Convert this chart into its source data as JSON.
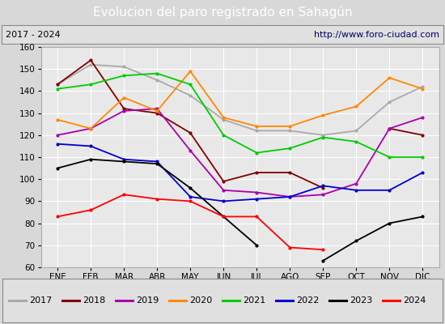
{
  "title": "Evolucion del paro registrado en Sahagún",
  "subtitle_left": "2017 - 2024",
  "subtitle_right": "http://www.foro-ciudad.com",
  "ylim": [
    60,
    160
  ],
  "yticks": [
    60,
    70,
    80,
    90,
    100,
    110,
    120,
    130,
    140,
    150,
    160
  ],
  "months": [
    "ENE",
    "FEB",
    "MAR",
    "ABR",
    "MAY",
    "JUN",
    "JUL",
    "AGO",
    "SEP",
    "OCT",
    "NOV",
    "DIC"
  ],
  "series": {
    "2017": {
      "color": "#aaaaaa",
      "data": [
        143,
        152,
        151,
        145,
        138,
        127,
        122,
        122,
        120,
        122,
        135,
        142
      ]
    },
    "2018": {
      "color": "#800000",
      "data": [
        143,
        154,
        132,
        130,
        121,
        99,
        103,
        103,
        96,
        null,
        123,
        120
      ]
    },
    "2019": {
      "color": "#aa00aa",
      "data": [
        120,
        123,
        131,
        132,
        113,
        95,
        94,
        92,
        93,
        98,
        123,
        128
      ]
    },
    "2020": {
      "color": "#ff8800",
      "data": [
        127,
        123,
        137,
        131,
        149,
        128,
        124,
        124,
        129,
        133,
        146,
        141
      ]
    },
    "2021": {
      "color": "#00cc00",
      "data": [
        141,
        143,
        147,
        148,
        143,
        120,
        112,
        114,
        119,
        117,
        110,
        110
      ]
    },
    "2022": {
      "color": "#0000cc",
      "data": [
        116,
        115,
        109,
        108,
        92,
        90,
        91,
        92,
        97,
        95,
        95,
        103
      ]
    },
    "2023": {
      "color": "#000000",
      "data": [
        105,
        109,
        108,
        107,
        96,
        83,
        70,
        null,
        63,
        72,
        80,
        83
      ]
    },
    "2024": {
      "color": "#ff0000",
      "data": [
        83,
        86,
        93,
        91,
        90,
        83,
        83,
        69,
        68,
        null,
        null,
        null
      ]
    }
  },
  "fig_bg": "#d8d8d8",
  "plot_bg": "#e8e8e8",
  "title_bg": "#4f86c6",
  "title_fg": "#ffffff",
  "header_bg": "#e0e0e0",
  "grid_color": "#ffffff",
  "title_fontsize": 11,
  "header_fontsize": 8,
  "tick_fontsize": 7.5,
  "legend_fontsize": 8,
  "linewidth": 1.3,
  "markersize": 2.0
}
